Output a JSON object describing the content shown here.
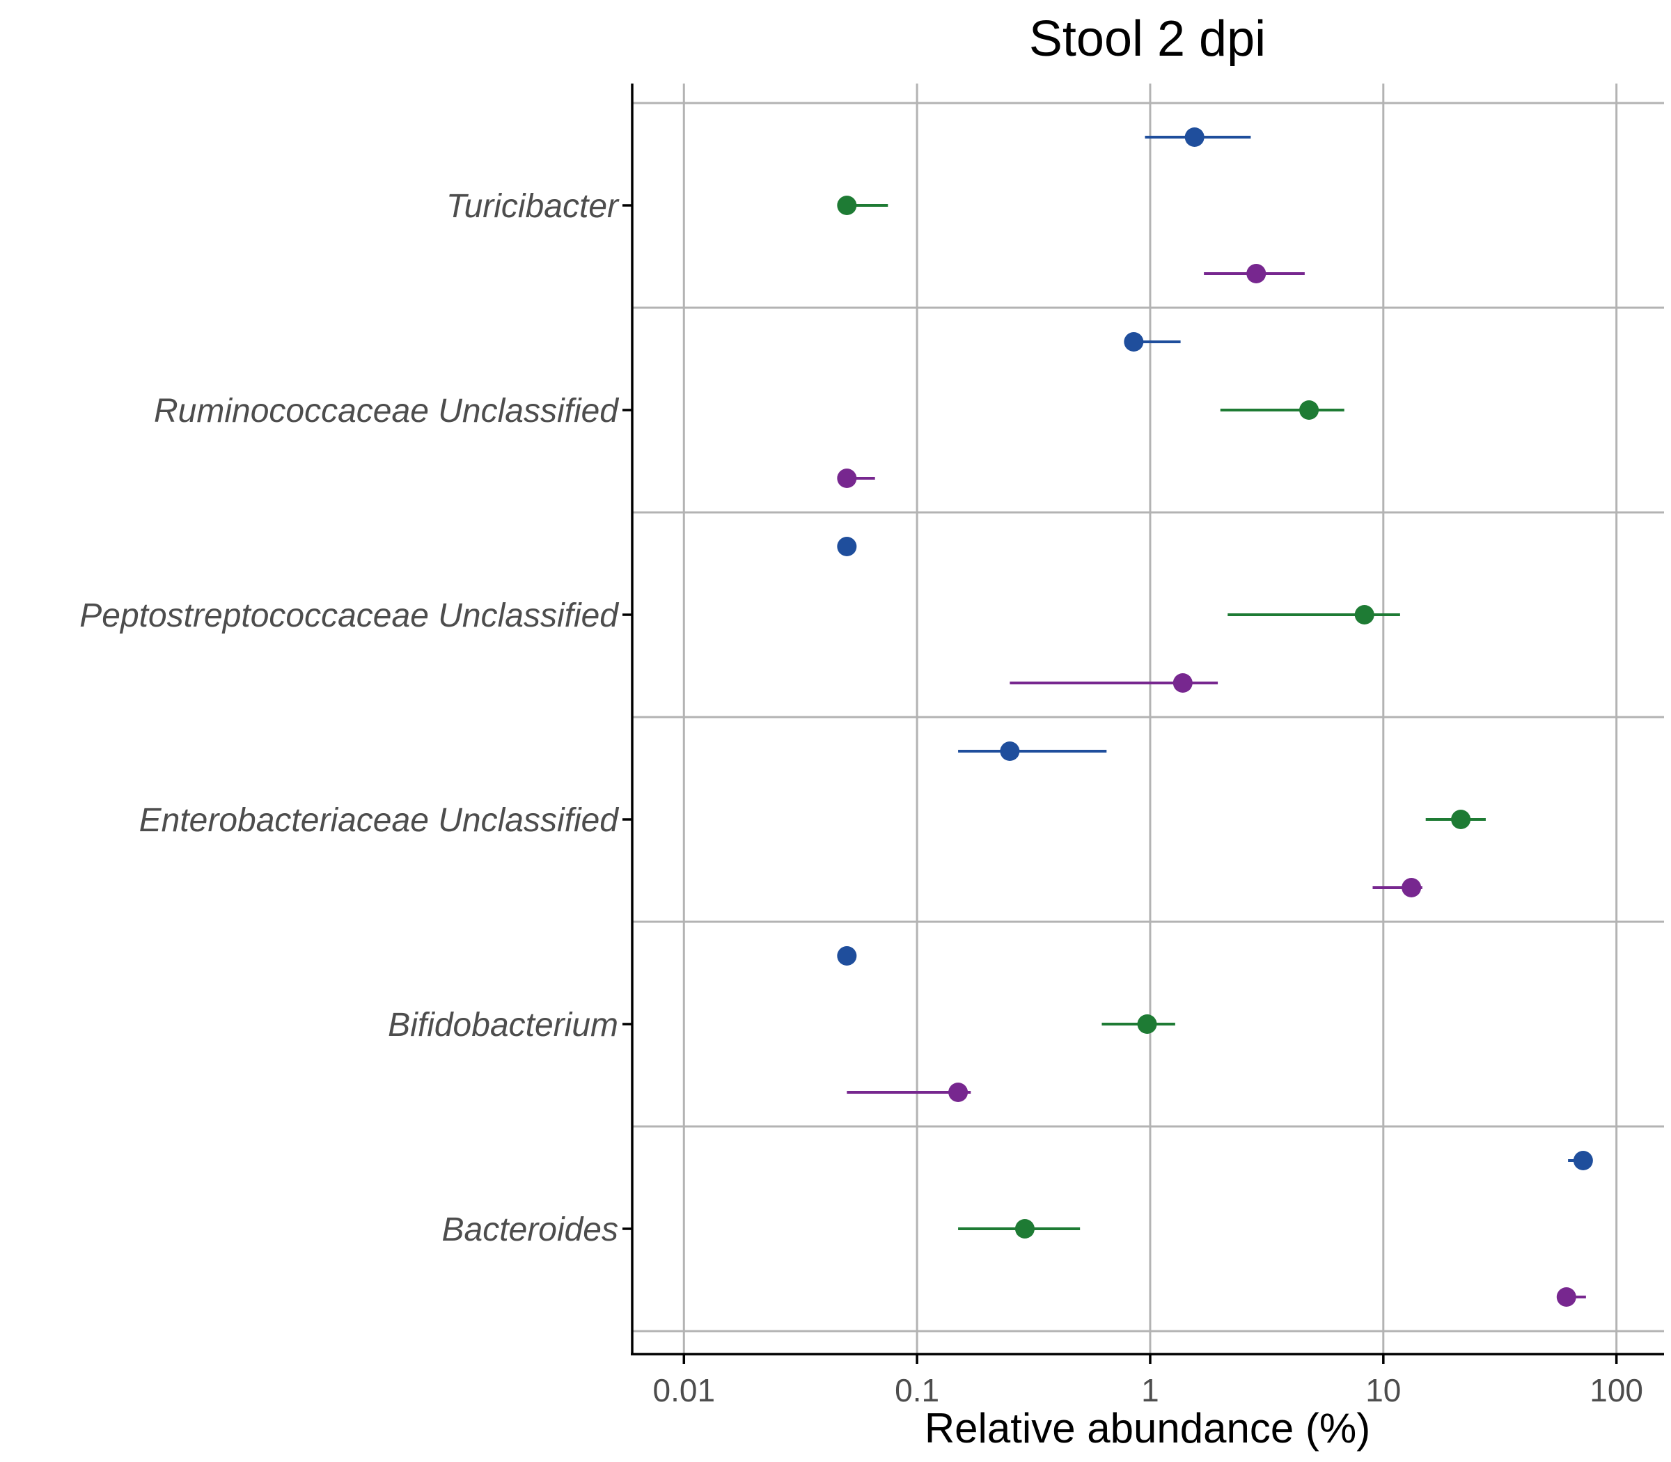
{
  "chart_data": {
    "type": "scatter",
    "title": "Stool 2 dpi",
    "xlabel": "Relative abundance (%)",
    "ylabel": "",
    "x_scale": "log10",
    "xlim": [
      0.006,
      160
    ],
    "x_ticks": [
      0.01,
      0.1,
      1,
      10,
      100
    ],
    "x_tick_labels": [
      "0.01",
      "0.1",
      "1",
      "10",
      "100"
    ],
    "grid": "major x lines and horizontal group separators",
    "legend": "none",
    "categories": [
      "Turicibacter",
      "Ruminococcaceae Unclassified",
      "Peptostreptococcaceae Unclassified",
      "Enterobacteriaceae Unclassified",
      "Bifidobacterium",
      "Bacteroides"
    ],
    "series": [
      {
        "color": "#1f4e9c",
        "points": [
          {
            "x": 1.55,
            "low": 0.95,
            "high": 2.7
          },
          {
            "x": 0.85,
            "low": 0.85,
            "high": 1.35
          },
          {
            "x": 0.05,
            "low": 0.05,
            "high": 0.05
          },
          {
            "x": 0.25,
            "low": 0.15,
            "high": 0.65
          },
          {
            "x": 0.05,
            "low": 0.05,
            "high": 0.05
          },
          {
            "x": 72,
            "low": 62,
            "high": 72
          }
        ]
      },
      {
        "color": "#1e7b34",
        "points": [
          {
            "x": 0.05,
            "low": 0.05,
            "high": 0.075
          },
          {
            "x": 4.8,
            "low": 2.0,
            "high": 6.8
          },
          {
            "x": 8.3,
            "low": 2.15,
            "high": 11.8
          },
          {
            "x": 21.5,
            "low": 15.2,
            "high": 27.5
          },
          {
            "x": 0.97,
            "low": 0.62,
            "high": 1.28
          },
          {
            "x": 0.29,
            "low": 0.15,
            "high": 0.5
          }
        ]
      },
      {
        "color": "#77278f",
        "points": [
          {
            "x": 2.85,
            "low": 1.7,
            "high": 4.6
          },
          {
            "x": 0.05,
            "low": 0.05,
            "high": 0.066
          },
          {
            "x": 1.38,
            "low": 0.25,
            "high": 1.95
          },
          {
            "x": 13.2,
            "low": 9.0,
            "high": 14.7
          },
          {
            "x": 0.15,
            "low": 0.05,
            "high": 0.17
          },
          {
            "x": 61,
            "low": 61,
            "high": 74
          }
        ]
      }
    ]
  }
}
